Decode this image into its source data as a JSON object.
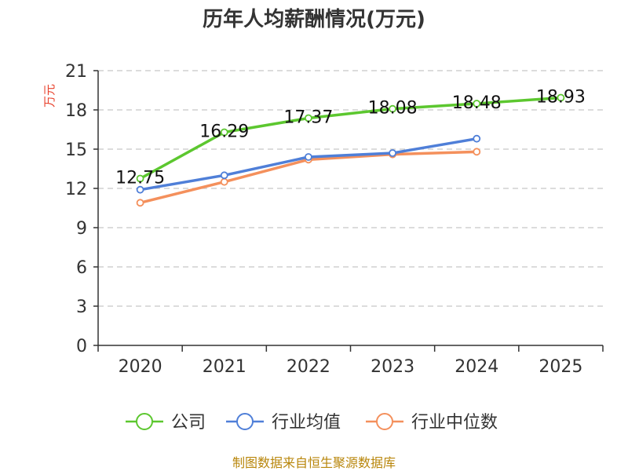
{
  "chart_data": {
    "type": "line",
    "title": "历年人均薪酬情况(万元)",
    "ylabel": "万元",
    "xlabel": "",
    "ylim": [
      0,
      21
    ],
    "yticks": [
      0,
      3,
      6,
      9,
      12,
      15,
      18,
      21
    ],
    "categories": [
      "2020",
      "2021",
      "2022",
      "2023",
      "2024",
      "2025"
    ],
    "grid": true,
    "legend_position": "bottom",
    "series": [
      {
        "name": "公司",
        "color": "#5cc72f",
        "values": [
          12.75,
          16.29,
          17.37,
          18.08,
          18.48,
          18.93
        ],
        "labels": [
          "12.75",
          "16.29",
          "17.37",
          "18.08",
          "18.48",
          "18.93"
        ]
      },
      {
        "name": "行业均值",
        "color": "#4f7fd8",
        "values": [
          11.9,
          13.0,
          14.4,
          14.7,
          15.8,
          null
        ]
      },
      {
        "name": "行业中位数",
        "color": "#f4905c",
        "values": [
          10.9,
          12.5,
          14.2,
          14.6,
          14.8,
          null
        ]
      }
    ]
  },
  "source": "制图数据来自恒生聚源数据库"
}
